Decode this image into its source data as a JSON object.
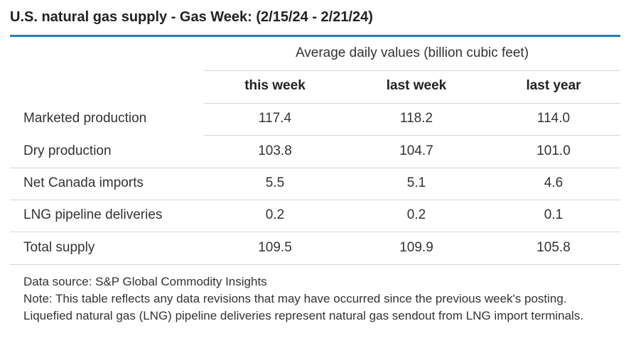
{
  "title": "U.S. natural gas supply - Gas Week: (2/15/24 - 2/21/24)",
  "unit_header": "Average daily values (billion cubic feet)",
  "columns": [
    "this week",
    "last week",
    "last year"
  ],
  "rows": [
    {
      "label": "Marketed production",
      "values": [
        "117.4",
        "118.2",
        "114.0"
      ]
    },
    {
      "label": "Dry production",
      "values": [
        "103.8",
        "104.7",
        "101.0"
      ]
    },
    {
      "label": "Net Canada imports",
      "values": [
        "5.5",
        "5.1",
        "4.6"
      ]
    },
    {
      "label": "LNG pipeline deliveries",
      "values": [
        "0.2",
        "0.2",
        "0.1"
      ]
    },
    {
      "label": "Total supply",
      "values": [
        "109.5",
        "109.9",
        "105.8"
      ]
    }
  ],
  "footer": {
    "source": "Data source: S&P Global Commodity Insights",
    "note": "Note: This table reflects any data revisions that may have occurred since the previous week's posting. Liquefied natural gas (LNG) pipeline deliveries represent natural gas sendout from LNG import terminals."
  },
  "colors": {
    "accent": "#1f82c0",
    "rule": "#d6d6d6",
    "text": "#333333"
  }
}
